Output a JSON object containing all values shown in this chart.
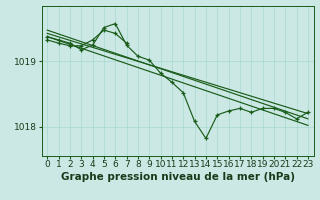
{
  "xlabel": "Graphe pression niveau de la mer (hPa)",
  "bg_color": "#cce8e4",
  "grid_color": "#a8d8d0",
  "line_color": "#1a5c1a",
  "xlim": [
    -0.5,
    23.5
  ],
  "ylim": [
    1017.55,
    1019.85
  ],
  "yticks": [
    1018.0,
    1019.0
  ],
  "xticks": [
    0,
    1,
    2,
    3,
    4,
    5,
    6,
    7,
    8,
    9,
    10,
    11,
    12,
    13,
    14,
    15,
    16,
    17,
    18,
    19,
    20,
    21,
    22,
    23
  ],
  "main_data_x": [
    0,
    1,
    2,
    3,
    4,
    5,
    6,
    7,
    8,
    9,
    10,
    11,
    12,
    13,
    14,
    15,
    16,
    17,
    18,
    19,
    20,
    21,
    22,
    23
  ],
  "main_data_y": [
    1019.38,
    1019.33,
    1019.28,
    1019.18,
    1019.25,
    1019.52,
    1019.58,
    1019.25,
    1019.08,
    1019.02,
    1018.82,
    1018.68,
    1018.52,
    1018.08,
    1017.82,
    1018.18,
    1018.24,
    1018.28,
    1018.22,
    1018.28,
    1018.28,
    1018.22,
    1018.12,
    1018.22
  ],
  "trend1_x": [
    0,
    23
  ],
  "trend1_y": [
    1019.48,
    1018.12
  ],
  "trend2_x": [
    0,
    23
  ],
  "trend2_y": [
    1019.38,
    1018.02
  ],
  "trend3_x": [
    0,
    23
  ],
  "trend3_y": [
    1019.43,
    1018.2
  ],
  "line2_x": [
    0,
    1,
    2,
    3,
    4,
    5,
    6,
    7
  ],
  "line2_y": [
    1019.33,
    1019.28,
    1019.24,
    1019.24,
    1019.33,
    1019.48,
    1019.43,
    1019.28
  ],
  "xlabel_fontsize": 7.5,
  "tick_fontsize": 6.5
}
